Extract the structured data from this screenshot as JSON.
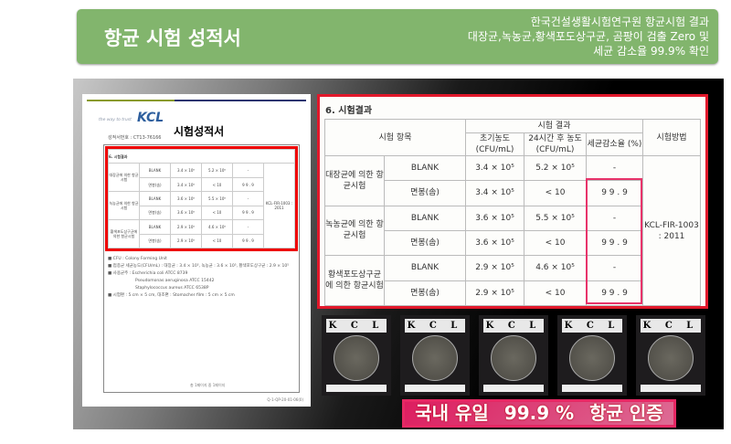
{
  "header": {
    "title": "항균 시험 성적서",
    "subtitle_lines": [
      "한국건설생활시험연구원 항균시험 결과",
      "대장균,녹농균,황색포도상구균, 곰팡이 검출 Zero 및",
      "세균 감소율 99.9% 확인"
    ]
  },
  "document": {
    "logo": "KCL",
    "tagline": "the way to trust",
    "title": "시험성적서",
    "number": "성적서번호 : CT13-76166",
    "section": "6. 시험결과",
    "rows": [
      [
        "대장균에 의한 항균시험",
        "BLANK",
        "3.4 × 10⁵",
        "5.2 × 10⁵",
        "-"
      ],
      [
        "",
        "면봉(솜)",
        "3.4 × 10⁵",
        "< 10",
        "9 9 . 9"
      ],
      [
        "녹농균에 의한 항균시험",
        "BLANK",
        "3.6 × 10⁵",
        "5.5 × 10⁵",
        "-"
      ],
      [
        "",
        "면봉(솜)",
        "3.6 × 10⁵",
        "< 10",
        "9 9 . 9"
      ],
      [
        "황색포도상구균에 의한 항균시험",
        "BLANK",
        "2.9 × 10⁵",
        "4.6 × 10⁵",
        "-"
      ],
      [
        "",
        "면봉(솜)",
        "2.9 × 10⁵",
        "< 10",
        "9 9 . 9"
      ]
    ],
    "notes": [
      "■ CFU : Colony Forming Unit",
      "■ 접종균 세균농도(CFU/mL) : 대장균 : 3.4 × 10⁵, 녹농균 : 3.6 × 10⁵, 황색포도상구균 : 2.9 × 10⁵",
      "■ 사용균주 : Escherichia coli ATCC 8739",
      "Pseudomonas aeruginosa ATCC 15442",
      "Staphylococcus aureus ATCC 6538P",
      "■ 시험편 : 5 cm × 5 cm, 대조편 : Stomacher film : 5 cm × 5 cm"
    ],
    "footer": "총 1페이지 중 1페이지",
    "code": "Q-1-QP-20-01-06(0)"
  },
  "results": {
    "section": "6. 시험결과",
    "col_item": "시험 항목",
    "col_result": "시험 결과",
    "col_initial": "초기농도 (CFU/mL)",
    "col_24h": "24시간 후 농도 (CFU/mL)",
    "col_reduction": "세균감소율 (%)",
    "col_method": "시험방법",
    "method": "KCL-FIR-1003 : 2011",
    "groups": [
      "대장균에 의한 항균시험",
      "녹농균에 의한 항균시험",
      "황색포도상구균에 의한 항균시험"
    ],
    "rows": [
      [
        "BLANK",
        "3.4 × 10⁵",
        "5.2 × 10⁵",
        "-"
      ],
      [
        "면봉(솜)",
        "3.4 × 10⁵",
        "< 10",
        "9 9 . 9"
      ],
      [
        "BLANK",
        "3.6 × 10⁵",
        "5.5 × 10⁵",
        "-"
      ],
      [
        "면봉(솜)",
        "3.6 × 10⁵",
        "< 10",
        "9 9 . 9"
      ],
      [
        "BLANK",
        "2.9 × 10⁵",
        "4.6 × 10⁵",
        "-"
      ],
      [
        "면봉(솜)",
        "2.9 × 10⁵",
        "< 10",
        "9 9 . 9"
      ]
    ]
  },
  "overlay": {
    "lines": [
      "국내 유일",
      "99.9 %",
      "항균 인증"
    ]
  },
  "dishes": [
    {
      "label": "K C L"
    },
    {
      "label": "K C L"
    },
    {
      "label": "K C L"
    },
    {
      "label": "K C L"
    },
    {
      "label": "K C L"
    }
  ]
}
